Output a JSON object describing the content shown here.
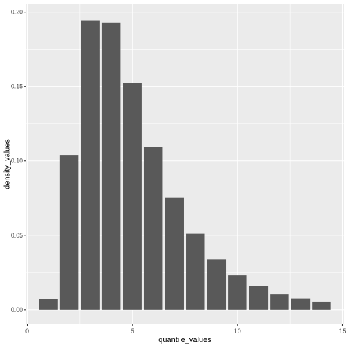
{
  "chart_data": {
    "type": "bar",
    "xlabel": "quantile_values",
    "ylabel": "density_values",
    "xlim": [
      -0.05,
      15.05
    ],
    "ylim": [
      -0.0098,
      0.2054
    ],
    "x_ticks": [
      0,
      5,
      10,
      15
    ],
    "y_ticks": [
      0.0,
      0.05,
      0.1,
      0.15,
      0.2
    ],
    "x_tick_labels": [
      "0",
      "5",
      "10",
      "15"
    ],
    "y_tick_labels": [
      "0.00",
      "0.05",
      "0.10",
      "0.15",
      "0.20"
    ],
    "grid": true,
    "bar_width": 0.9,
    "x": [
      1,
      2,
      3,
      4,
      5,
      6,
      7,
      8,
      9,
      10,
      11,
      12,
      13,
      14
    ],
    "values": [
      0.007,
      0.104,
      0.1945,
      0.193,
      0.1525,
      0.1095,
      0.0755,
      0.051,
      0.034,
      0.023,
      0.016,
      0.0105,
      0.0075,
      0.0055
    ],
    "colors": {
      "panel": "#ebebeb",
      "grid_major": "#ffffff",
      "bar": "#595959",
      "tick": "#333333"
    }
  }
}
